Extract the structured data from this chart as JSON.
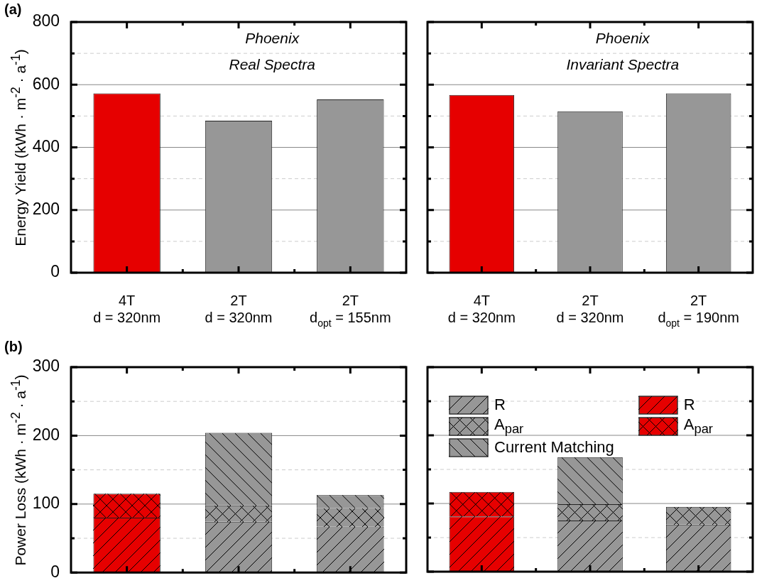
{
  "chart_data": [
    {
      "type": "bar",
      "title": "(a)",
      "ylabel": "Energy Yield (kWh · m$^{-2}$ · a$^{-1}$)",
      "annotations": [
        "Phoenix",
        "Real Spectra"
      ],
      "categories": [
        "4T\nd = 320nm",
        "2T\nd = 320nm",
        "2T\nd$_{opt}$ = 155nm"
      ],
      "values": [
        572,
        485,
        553
      ],
      "colors": [
        "#e60000",
        "#979797",
        "#979797"
      ],
      "ylim": [
        0,
        800
      ],
      "yticks": [
        0,
        {
          "value": 100,
          "label": null
        },
        200,
        {
          "value": 300,
          "label": null
        },
        400,
        {
          "value": 500,
          "label": null
        },
        600,
        {
          "value": 700,
          "label": null
        },
        800
      ],
      "grid": "y"
    },
    {
      "type": "bar",
      "annotations": [
        "Phoenix",
        "Invariant Spectra"
      ],
      "categories": [
        "4T\nd = 320nm",
        "2T\nd = 320nm",
        "2T\nd$_{opt}$ = 190nm"
      ],
      "values": [
        567,
        515,
        572
      ],
      "colors": [
        "#e60000",
        "#979797",
        "#979797"
      ],
      "ylim": [
        0,
        800
      ],
      "yticks": [
        0,
        {
          "value": 100,
          "label": null
        },
        200,
        {
          "value": 300,
          "label": null
        },
        400,
        {
          "value": 500,
          "label": null
        },
        600,
        {
          "value": 700,
          "label": null
        },
        800
      ],
      "grid": "y",
      "tick_labels": "x"
    },
    {
      "type": "bar",
      "title": "(b)",
      "ylabel": "Power Loss (kWh · m$^{-2}$ · a$^{-1}$)",
      "stacked": true,
      "categories": [
        null,
        null,
        null
      ],
      "series": [
        {
          "color": "#979797",
          "values": [
            null,
            74,
            67
          ]
        },
        {
          "color": "#979797",
          "values": [
            null,
            24,
            27
          ]
        },
        {
          "color": "#979797",
          "values": [
            null,
            106,
            19
          ]
        },
        {
          "color": "#e60000",
          "values": [
            80,
            null,
            null
          ]
        },
        {
          "color": "#e60000",
          "values": [
            35,
            null,
            null
          ]
        }
      ],
      "ylim": [
        0,
        300
      ],
      "yticks": [
        0,
        {
          "value": 50,
          "label": null
        },
        100,
        {
          "value": 150,
          "label": null
        },
        200,
        {
          "value": 250,
          "label": null
        },
        300
      ],
      "grid": "y",
      "tick_labels": "y"
    },
    {
      "type": "bar",
      "stacked": true,
      "legend": "top left",
      "categories": [
        null,
        null,
        null
      ],
      "series": [
        {
          "name": "R",
          "color": "#979797",
          "values": [
            null,
            75,
            69
          ]
        },
        {
          "name": "A$_{par}$",
          "color": "#979797",
          "values": [
            null,
            24,
            26
          ]
        },
        {
          "name": "Current Matching",
          "color": "#979797",
          "values": [
            null,
            69,
            null
          ]
        },
        {
          "name": "R",
          "color": "#e60000",
          "values": [
            81,
            null,
            null
          ]
        },
        {
          "name": "A$_{par}$",
          "color": "#e60000",
          "values": [
            36,
            null,
            null
          ]
        }
      ],
      "ylim": [
        0,
        300
      ],
      "yticks": [
        0,
        {
          "value": 50,
          "label": null
        },
        100,
        {
          "value": 150,
          "label": null
        },
        200,
        {
          "value": 250,
          "label": null
        },
        300
      ],
      "grid": "y",
      "tick_labels": false
    }
  ]
}
